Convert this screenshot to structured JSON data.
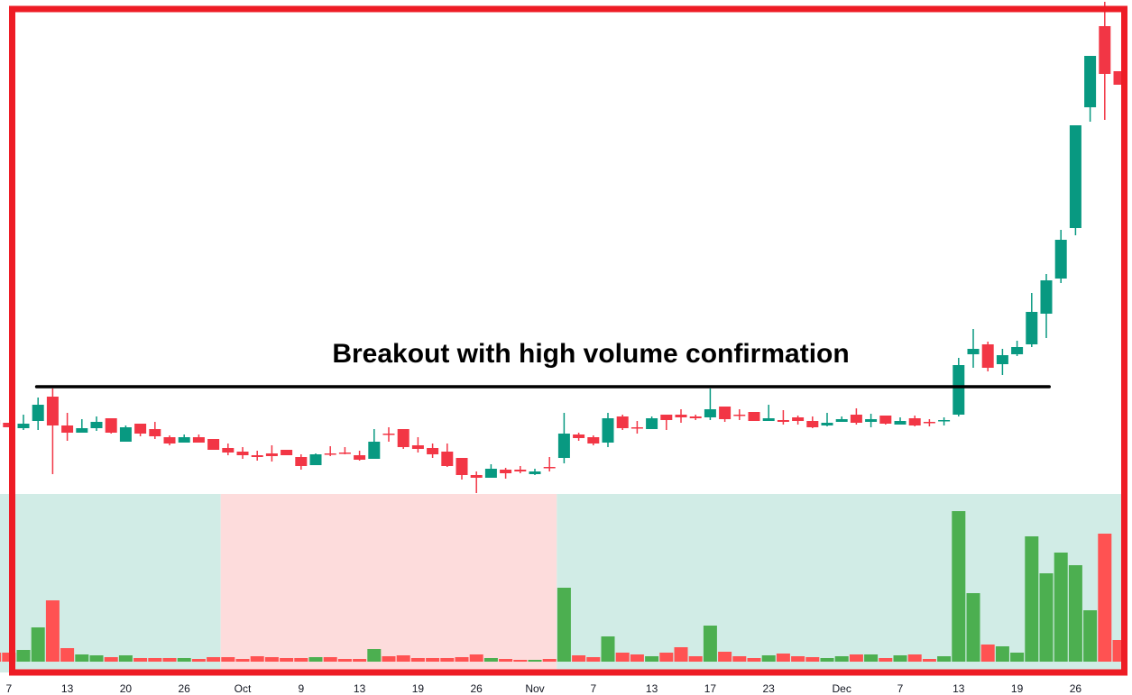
{
  "chart_data": {
    "type": "candlestick",
    "title": "",
    "annotation": {
      "text": "Breakout with high volume confirmation",
      "line_price": 13.1,
      "line_from_index": 2.9,
      "line_to_index": 72.2,
      "line_color": "#000000"
    },
    "x_tick_labels": [
      {
        "label": "7",
        "index": 1
      },
      {
        "label": "13",
        "index": 5
      },
      {
        "label": "20",
        "index": 9
      },
      {
        "label": "26",
        "index": 13
      },
      {
        "label": "Oct",
        "index": 17
      },
      {
        "label": "9",
        "index": 21
      },
      {
        "label": "13",
        "index": 25
      },
      {
        "label": "19",
        "index": 29
      },
      {
        "label": "26",
        "index": 33
      },
      {
        "label": "Nov",
        "index": 37
      },
      {
        "label": "7",
        "index": 41
      },
      {
        "label": "13",
        "index": 45
      },
      {
        "label": "17",
        "index": 49
      },
      {
        "label": "23",
        "index": 53
      },
      {
        "label": "Dec",
        "index": 58
      },
      {
        "label": "7",
        "index": 62
      },
      {
        "label": "13",
        "index": 66
      },
      {
        "label": "19",
        "index": 70
      },
      {
        "label": "26",
        "index": 74
      }
    ],
    "ohlc": [
      [
        9.4,
        9.7,
        8.8,
        8.9
      ],
      [
        9.1,
        9.1,
        8.6,
        8.6
      ],
      [
        8.5,
        10.0,
        8.3,
        9.0
      ],
      [
        9.3,
        11.9,
        8.3,
        11.1
      ],
      [
        12.0,
        12.9,
        3.4,
        8.8
      ],
      [
        8.8,
        10.2,
        7.1,
        8.0
      ],
      [
        8.0,
        9.5,
        8.0,
        8.5
      ],
      [
        8.5,
        9.8,
        8.2,
        9.2
      ],
      [
        9.6,
        9.6,
        7.9,
        8.0
      ],
      [
        7.0,
        8.8,
        7.0,
        8.6
      ],
      [
        9.0,
        9.0,
        7.6,
        7.9
      ],
      [
        8.4,
        9.2,
        7.3,
        7.6
      ],
      [
        7.5,
        7.7,
        6.6,
        6.8
      ],
      [
        6.9,
        7.8,
        6.9,
        7.5
      ],
      [
        7.5,
        7.8,
        6.9,
        6.9
      ],
      [
        7.3,
        7.3,
        6.1,
        6.1
      ],
      [
        6.3,
        6.8,
        5.5,
        5.8
      ],
      [
        5.9,
        6.4,
        5.1,
        5.5
      ],
      [
        5.5,
        6.0,
        4.9,
        5.3
      ],
      [
        5.7,
        6.6,
        4.8,
        5.4
      ],
      [
        6.1,
        6.1,
        5.5,
        5.5
      ],
      [
        5.3,
        5.6,
        3.9,
        4.3
      ],
      [
        4.4,
        5.7,
        4.4,
        5.6
      ],
      [
        5.7,
        6.5,
        5.4,
        5.6
      ],
      [
        5.8,
        6.4,
        5.6,
        5.7
      ],
      [
        5.5,
        6.0,
        4.9,
        5.0
      ],
      [
        5.1,
        8.4,
        5.1,
        7.0
      ],
      [
        7.9,
        8.6,
        7.0,
        7.8
      ],
      [
        8.4,
        8.4,
        6.2,
        6.4
      ],
      [
        6.6,
        7.5,
        5.8,
        6.2
      ],
      [
        6.3,
        6.8,
        5.2,
        5.6
      ],
      [
        5.9,
        6.8,
        4.2,
        4.3
      ],
      [
        5.2,
        5.2,
        2.8,
        3.3
      ],
      [
        3.3,
        3.7,
        1.3,
        3.0
      ],
      [
        3.0,
        4.5,
        3.0,
        4.0
      ],
      [
        3.9,
        4.1,
        2.9,
        3.5
      ],
      [
        3.9,
        4.3,
        3.5,
        3.7
      ],
      [
        3.4,
        4.0,
        3.3,
        3.7
      ],
      [
        4.2,
        5.3,
        3.7,
        4.1
      ],
      [
        5.2,
        10.2,
        4.6,
        7.9
      ],
      [
        7.8,
        8.0,
        7.1,
        7.4
      ],
      [
        7.5,
        7.7,
        6.6,
        6.8
      ],
      [
        6.9,
        10.2,
        6.4,
        9.6
      ],
      [
        9.8,
        10.0,
        8.3,
        8.5
      ],
      [
        8.6,
        9.3,
        7.9,
        8.5
      ],
      [
        8.4,
        9.8,
        8.4,
        9.6
      ],
      [
        10.0,
        10.0,
        8.3,
        9.4
      ],
      [
        10.0,
        10.6,
        9.1,
        9.7
      ],
      [
        9.8,
        10.0,
        9.4,
        9.6
      ],
      [
        9.7,
        12.9,
        9.4,
        10.6
      ],
      [
        10.9,
        10.9,
        9.2,
        9.5
      ],
      [
        10.0,
        10.6,
        9.4,
        9.9
      ],
      [
        10.3,
        10.3,
        9.3,
        9.3
      ],
      [
        9.3,
        11.1,
        9.3,
        9.6
      ],
      [
        9.4,
        10.5,
        8.9,
        9.2
      ],
      [
        9.7,
        9.9,
        8.9,
        9.3
      ],
      [
        9.3,
        9.8,
        8.5,
        8.6
      ],
      [
        8.8,
        10.2,
        8.7,
        9.1
      ],
      [
        9.2,
        9.8,
        9.2,
        9.5
      ],
      [
        10.0,
        10.7,
        8.9,
        9.1
      ],
      [
        9.2,
        10.1,
        8.6,
        9.5
      ],
      [
        9.9,
        9.9,
        8.9,
        9.0
      ],
      [
        8.9,
        9.7,
        8.9,
        9.3
      ],
      [
        9.6,
        9.9,
        8.7,
        8.8
      ],
      [
        9.2,
        9.5,
        8.7,
        9.1
      ],
      [
        9.3,
        9.7,
        8.8,
        9.4
      ],
      [
        10.0,
        16.3,
        9.8,
        15.5
      ],
      [
        16.7,
        19.5,
        15.2,
        17.3
      ],
      [
        17.8,
        18.1,
        14.8,
        15.2
      ],
      [
        15.6,
        17.3,
        14.4,
        16.6
      ],
      [
        16.7,
        18.2,
        16.5,
        17.5
      ],
      [
        17.8,
        23.5,
        17.5,
        21.4
      ],
      [
        21.2,
        25.6,
        18.5,
        24.9
      ],
      [
        25.1,
        30.5,
        24.6,
        29.4
      ],
      [
        30.7,
        42.1,
        29.9,
        42.1
      ],
      [
        44.1,
        49.8,
        42.5,
        49.8
      ],
      [
        53.1,
        55.8,
        42.7,
        47.8
      ],
      [
        48.1,
        48.1,
        46.6,
        46.6
      ]
    ],
    "volume": [
      10,
      10,
      13,
      38,
      68,
      15,
      8,
      7,
      5,
      7,
      4,
      4,
      4,
      4,
      3,
      5,
      5,
      3,
      6,
      5,
      4,
      4,
      5,
      5,
      3,
      3,
      14,
      6,
      7,
      4,
      4,
      4,
      5,
      8,
      4,
      3,
      2,
      2,
      3,
      82,
      7,
      5,
      28,
      10,
      8,
      6,
      10,
      16,
      6,
      40,
      11,
      6,
      4,
      7,
      9,
      6,
      5,
      4,
      6,
      8,
      8,
      4,
      7,
      8,
      3,
      6,
      167,
      76,
      19,
      17,
      10,
      139,
      98,
      121,
      107,
      57,
      142,
      24
    ],
    "volume_zones": [
      {
        "from_index": 0,
        "to_index": 15,
        "color": "#d1ece6"
      },
      {
        "from_index": 16,
        "to_index": 38,
        "color": "#fddcdc"
      },
      {
        "from_index": 39,
        "to_index": 77,
        "color": "#d1ece6"
      }
    ],
    "colors": {
      "candle_up": "#089981",
      "candle_down": "#f23645",
      "volume_up": "#4caf50",
      "volume_down": "#ff5252",
      "frame": "#ee1c25"
    }
  }
}
